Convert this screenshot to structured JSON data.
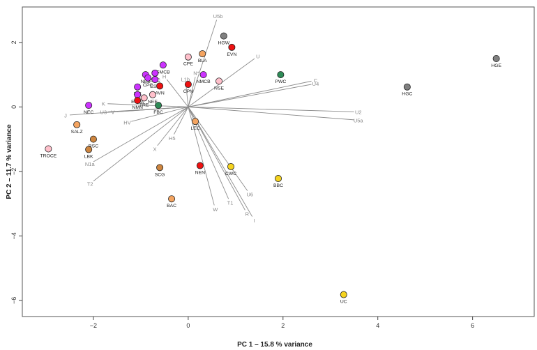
{
  "chart_data": {
    "type": "scatter",
    "subtype": "pca-biplot",
    "title": "",
    "xlabel": "PC 1 –  15.8 % variance",
    "ylabel": "PC 2 –  11.7 % variance",
    "xlim": [
      -3.5,
      7.3
    ],
    "ylim": [
      -6.5,
      3.1
    ],
    "xticks": [
      -2,
      0,
      2,
      4,
      6
    ],
    "yticks": [
      2,
      0,
      -2,
      -4,
      -6
    ],
    "xtick_labels": [
      "−2",
      "0",
      "2",
      "4",
      "6"
    ],
    "ytick_labels": [
      "2",
      "0",
      "−2",
      "−4",
      "−6"
    ],
    "points": [
      {
        "label": "HGW",
        "x": 0.75,
        "y": 2.2,
        "color": "#808080"
      },
      {
        "label": "BLA",
        "x": 0.3,
        "y": 1.65,
        "color": "#f4a460"
      },
      {
        "label": "EVN",
        "x": 0.92,
        "y": 1.85,
        "color": "#ee1111"
      },
      {
        "label": "CPE",
        "x": 0.0,
        "y": 1.55,
        "color": "#ffc0cb"
      },
      {
        "label": "HGE",
        "x": 6.5,
        "y": 1.5,
        "color": "#808080"
      },
      {
        "label": "SMCB",
        "x": -0.53,
        "y": 1.3,
        "color": "#cc33ff"
      },
      {
        "label": "SMC",
        "x": -0.7,
        "y": 1.05,
        "color": "#cc33ff"
      },
      {
        "label": "NEB",
        "x": -0.9,
        "y": 1.0,
        "color": "#cc33ff"
      },
      {
        "label": "CPC",
        "x": -0.85,
        "y": 0.9,
        "color": "#cc33ff"
      },
      {
        "label": "ESC",
        "x": -0.7,
        "y": 0.85,
        "color": "#cc33ff"
      },
      {
        "label": "NMCB",
        "x": 0.32,
        "y": 1.0,
        "color": "#cc33ff"
      },
      {
        "label": "PWC",
        "x": 1.95,
        "y": 1.0,
        "color": "#2e8b57"
      },
      {
        "label": "NSE",
        "x": 0.65,
        "y": 0.8,
        "color": "#ffc0cb"
      },
      {
        "label": "CPN",
        "x": 0.0,
        "y": 0.7,
        "color": "#ee1111"
      },
      {
        "label": "AVN",
        "x": -0.6,
        "y": 0.65,
        "color": "#ee1111"
      },
      {
        "label": "SIC",
        "x": -1.07,
        "y": 0.62,
        "color": "#cc33ff"
      },
      {
        "label": "HGC",
        "x": 4.62,
        "y": 0.62,
        "color": "#808080"
      },
      {
        "label": "ESBA",
        "x": -1.07,
        "y": 0.38,
        "color": "#cc33ff"
      },
      {
        "label": "NEE",
        "x": -0.75,
        "y": 0.38,
        "color": "#ffc0cb"
      },
      {
        "label": "TRE",
        "x": -0.93,
        "y": 0.28,
        "color": "#ffc0cb"
      },
      {
        "label": "NMN",
        "x": -1.07,
        "y": 0.2,
        "color": "#ee1111"
      },
      {
        "label": "FBC",
        "x": -0.63,
        "y": 0.05,
        "color": "#2e8b57"
      },
      {
        "label": "NEC",
        "x": -2.1,
        "y": 0.05,
        "color": "#cc33ff"
      },
      {
        "label": "SALZ",
        "x": -2.35,
        "y": -0.55,
        "color": "#f4a460"
      },
      {
        "label": "LEC",
        "x": 0.15,
        "y": -0.45,
        "color": "#f4a460"
      },
      {
        "label": "RSC",
        "x": -2.0,
        "y": -1.0,
        "color": "#cd853f"
      },
      {
        "label": "TROCE",
        "x": -2.95,
        "y": -1.3,
        "color": "#ffc0cb"
      },
      {
        "label": "LBK",
        "x": -2.1,
        "y": -1.32,
        "color": "#cd853f"
      },
      {
        "label": "NEN",
        "x": 0.25,
        "y": -1.82,
        "color": "#ee1111"
      },
      {
        "label": "SCG",
        "x": -0.6,
        "y": -1.88,
        "color": "#cd853f"
      },
      {
        "label": "CWC",
        "x": 0.9,
        "y": -1.85,
        "color": "#f5d31f"
      },
      {
        "label": "BBC",
        "x": 1.9,
        "y": -2.22,
        "color": "#f5d31f"
      },
      {
        "label": "BAC",
        "x": -0.35,
        "y": -2.85,
        "color": "#f4a460"
      },
      {
        "label": "UC",
        "x": 3.28,
        "y": -5.82,
        "color": "#f5d31f"
      }
    ],
    "loadings": [
      {
        "label": "U5b",
        "x": 0.6,
        "y": 2.7
      },
      {
        "label": "U",
        "x": 1.4,
        "y": 1.5
      },
      {
        "label": "C",
        "x": 2.6,
        "y": 0.8
      },
      {
        "label": "U4",
        "x": 2.6,
        "y": 0.7
      },
      {
        "label": "U2",
        "x": 3.5,
        "y": -0.15
      },
      {
        "label": "U5a",
        "x": 3.5,
        "y": -0.4
      },
      {
        "label": "U6",
        "x": 1.25,
        "y": -2.6
      },
      {
        "label": "R",
        "x": 1.2,
        "y": -3.2
      },
      {
        "label": "I",
        "x": 1.35,
        "y": -3.4
      },
      {
        "label": "T1",
        "x": 0.85,
        "y": -2.85
      },
      {
        "label": "W",
        "x": 0.55,
        "y": -3.05
      },
      {
        "label": "H5",
        "x": -0.3,
        "y": -0.85
      },
      {
        "label": "X",
        "x": -0.65,
        "y": -1.2
      },
      {
        "label": "HV",
        "x": -1.2,
        "y": -0.45
      },
      {
        "label": "N1a",
        "x": -2.0,
        "y": -1.7
      },
      {
        "label": "T2",
        "x": -2.0,
        "y": -2.3
      },
      {
        "label": "J",
        "x": -2.5,
        "y": -0.25
      },
      {
        "label": "K",
        "x": -1.7,
        "y": 0.1
      },
      {
        "label": "U3",
        "x": -1.7,
        "y": -0.15
      },
      {
        "label": "V",
        "x": -1.5,
        "y": -0.15
      },
      {
        "label": "H",
        "x": -0.45,
        "y": 0.85
      },
      {
        "label": "L1b",
        "x": -0.05,
        "y": 0.73
      },
      {
        "label": "N*",
        "x": 0.15,
        "y": 0.93
      }
    ]
  }
}
